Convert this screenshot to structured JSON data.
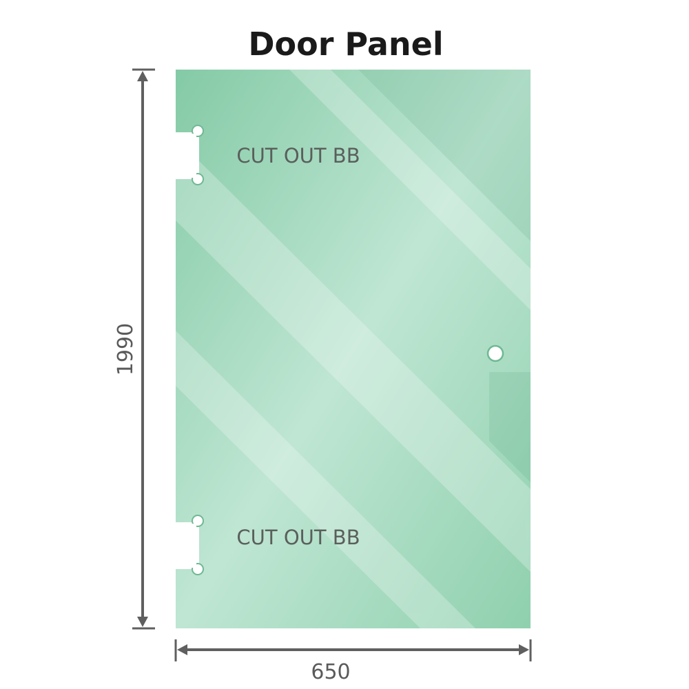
{
  "title": "Door Panel",
  "cutout_top_label": "CUT OUT BB",
  "cutout_bottom_label": "CUT OUT BB",
  "height_label": "1990",
  "width_label": "650",
  "colors": {
    "glass": "#86cca8",
    "glass_light": "#bfe6d2",
    "dimension": "#5f5f5f"
  },
  "icons": {
    "handle_hole": "circle"
  }
}
